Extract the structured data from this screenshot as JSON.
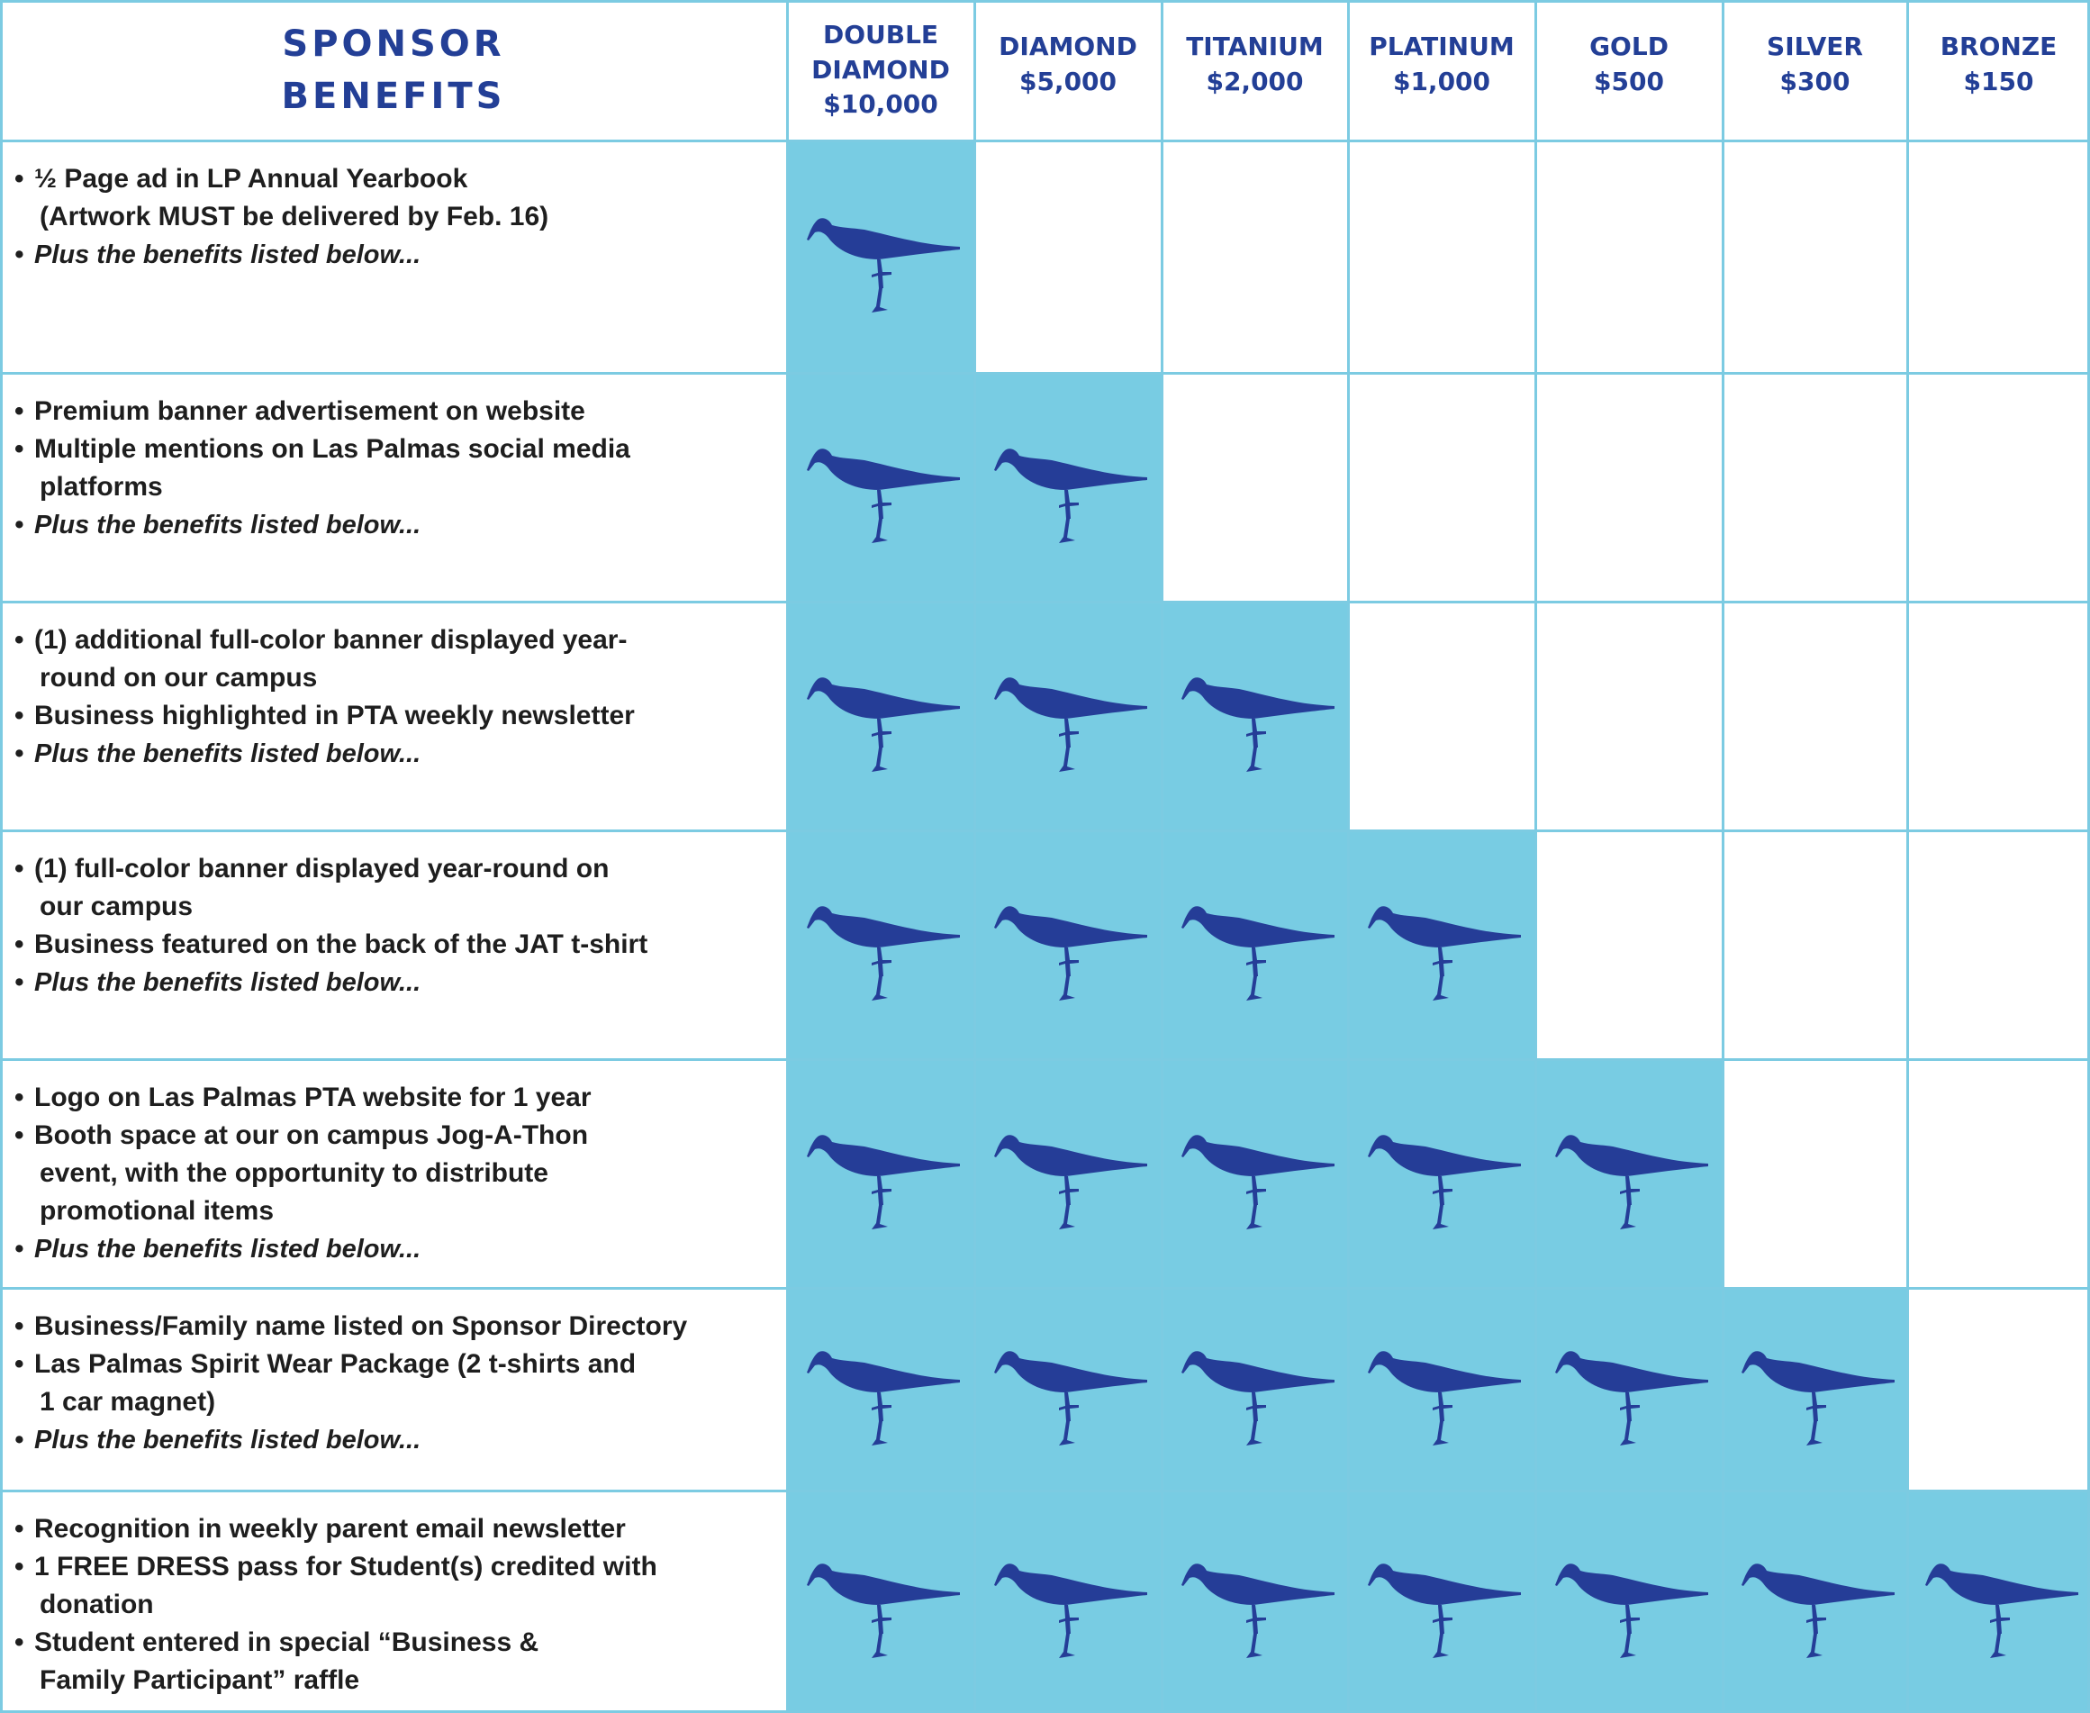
{
  "colors": {
    "header_text": "#233f96",
    "bird": "#253d97",
    "filled_cell": "#78cce3",
    "grid_line": "#7ccbe2",
    "body_text": "#1e1e1e"
  },
  "header": {
    "title_lines": [
      "SPONSOR",
      "BENEFITS"
    ],
    "tiers": [
      {
        "name_lines": [
          "DOUBLE",
          "DIAMOND"
        ],
        "price": "$10,000"
      },
      {
        "name_lines": [
          "DIAMOND"
        ],
        "price": "$5,000"
      },
      {
        "name_lines": [
          "TITANIUM"
        ],
        "price": "$2,000"
      },
      {
        "name_lines": [
          "PLATINUM"
        ],
        "price": "$1,000"
      },
      {
        "name_lines": [
          "GOLD"
        ],
        "price": "$500"
      },
      {
        "name_lines": [
          "SILVER"
        ],
        "price": "$300"
      },
      {
        "name_lines": [
          "BRONZE"
        ],
        "price": "$150"
      }
    ]
  },
  "benefit_icon": "sandpiper-bird-icon",
  "rows": [
    {
      "included_tier_count": 1,
      "lines": [
        {
          "text": "½ Page ad in LP Annual Yearbook",
          "bullet": true,
          "italic": false
        },
        {
          "text": "(Artwork MUST be delivered by Feb. 16)",
          "bullet": false,
          "italic": false
        },
        {
          "text": "Plus the benefits listed below...",
          "bullet": true,
          "italic": true
        }
      ]
    },
    {
      "included_tier_count": 2,
      "lines": [
        {
          "text": "Premium banner advertisement on website",
          "bullet": true,
          "italic": false
        },
        {
          "text": "Multiple mentions on Las Palmas social media",
          "bullet": true,
          "italic": false
        },
        {
          "text": "platforms",
          "bullet": false,
          "italic": false
        },
        {
          "text": "Plus the benefits listed below...",
          "bullet": true,
          "italic": true
        }
      ]
    },
    {
      "included_tier_count": 3,
      "lines": [
        {
          "text": "(1) additional full-color banner displayed year-",
          "bullet": true,
          "italic": false
        },
        {
          "text": "round on our campus",
          "bullet": false,
          "italic": false
        },
        {
          "text": "Business highlighted in PTA weekly newsletter",
          "bullet": true,
          "italic": false
        },
        {
          "text": "Plus the benefits listed below...",
          "bullet": true,
          "italic": true
        }
      ]
    },
    {
      "included_tier_count": 4,
      "lines": [
        {
          "text": "(1) full-color banner displayed year-round on",
          "bullet": true,
          "italic": false
        },
        {
          "text": "our campus",
          "bullet": false,
          "italic": false
        },
        {
          "text": "Business featured on the back of the JAT t-shirt",
          "bullet": true,
          "italic": false
        },
        {
          "text": "Plus the benefits listed below...",
          "bullet": true,
          "italic": true
        }
      ]
    },
    {
      "included_tier_count": 5,
      "lines": [
        {
          "text": "Logo on Las Palmas PTA website for 1 year",
          "bullet": true,
          "italic": false
        },
        {
          "text": "Booth space at our on campus Jog-A-Thon",
          "bullet": true,
          "italic": false
        },
        {
          "text": "event, with  the opportunity to distribute",
          "bullet": false,
          "italic": false
        },
        {
          "text": "promotional items",
          "bullet": false,
          "italic": false
        },
        {
          "text": "Plus the benefits listed below...",
          "bullet": true,
          "italic": true
        }
      ]
    },
    {
      "included_tier_count": 6,
      "lines": [
        {
          "text": "Business/Family name listed on Sponsor Directory",
          "bullet": true,
          "italic": false
        },
        {
          "text": "Las Palmas Spirit Wear Package (2 t-shirts and",
          "bullet": true,
          "italic": false
        },
        {
          "text": "1 car  magnet)",
          "bullet": false,
          "italic": false
        },
        {
          "text": "Plus the benefits listed below...",
          "bullet": true,
          "italic": true
        }
      ]
    },
    {
      "included_tier_count": 7,
      "lines": [
        {
          "text": "Recognition in weekly parent email newsletter",
          "bullet": true,
          "italic": false
        },
        {
          "text": "1 FREE DRESS pass for Student(s) credited with",
          "bullet": true,
          "italic": false
        },
        {
          "text": "donation",
          "bullet": false,
          "italic": false
        },
        {
          "text": "Student entered in special “Business &",
          "bullet": true,
          "italic": false
        },
        {
          "text": "Family  Participant” raffle",
          "bullet": false,
          "italic": false
        }
      ]
    }
  ]
}
